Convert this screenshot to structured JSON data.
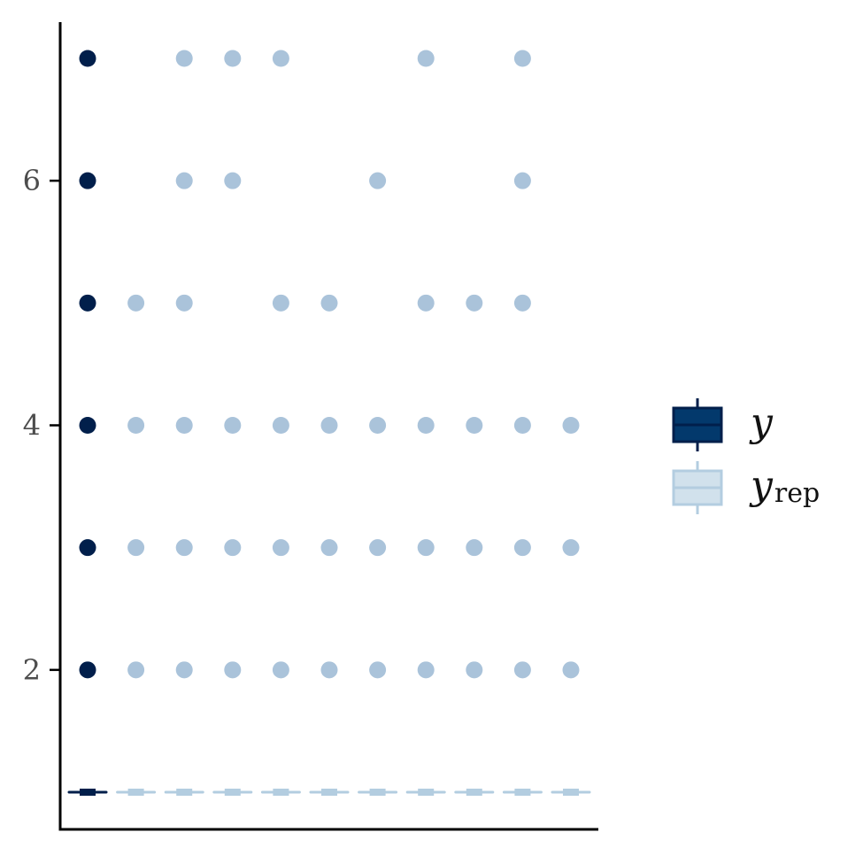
{
  "chart_data": {
    "type": "boxplot",
    "title": "",
    "xlabel": "",
    "ylabel": "",
    "ylim": [
      0.7,
      7.3
    ],
    "yticks": [
      2,
      4,
      6
    ],
    "ytick_labels": [
      "2",
      "4",
      "6"
    ],
    "grid": false,
    "legend_position": "right",
    "legend": [
      {
        "label": "y",
        "sub": "",
        "color": "#011f4b",
        "fill": "#03396c"
      },
      {
        "label": "y",
        "sub": "rep",
        "color": "#b3cde0",
        "fill": "#d1e1ec"
      }
    ],
    "groups": [
      {
        "series": "y",
        "median": 1,
        "outliers": [
          2,
          3,
          4,
          5,
          6,
          7
        ]
      },
      {
        "series": "y_rep",
        "median": 1,
        "outliers": [
          2,
          3,
          4,
          5
        ]
      },
      {
        "series": "y_rep",
        "median": 1,
        "outliers": [
          2,
          3,
          4,
          5,
          6,
          7
        ]
      },
      {
        "series": "y_rep",
        "median": 1,
        "outliers": [
          2,
          3,
          4,
          6,
          7
        ]
      },
      {
        "series": "y_rep",
        "median": 1,
        "outliers": [
          2,
          3,
          4,
          5,
          7
        ]
      },
      {
        "series": "y_rep",
        "median": 1,
        "outliers": [
          2,
          3,
          4,
          5
        ]
      },
      {
        "series": "y_rep",
        "median": 1,
        "outliers": [
          2,
          3,
          4,
          6
        ]
      },
      {
        "series": "y_rep",
        "median": 1,
        "outliers": [
          2,
          3,
          4,
          5,
          7
        ]
      },
      {
        "series": "y_rep",
        "median": 1,
        "outliers": [
          2,
          3,
          4,
          5
        ]
      },
      {
        "series": "y_rep",
        "median": 1,
        "outliers": [
          2,
          3,
          4,
          5,
          6,
          7
        ]
      },
      {
        "series": "y_rep",
        "median": 1,
        "outliers": [
          2,
          3,
          4
        ]
      }
    ]
  }
}
